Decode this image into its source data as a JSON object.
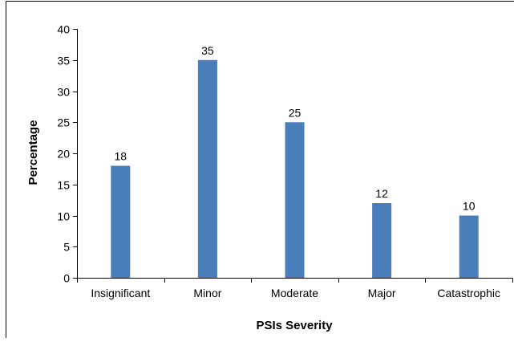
{
  "chart_data": {
    "type": "bar",
    "categories": [
      "Insignificant",
      "Minor",
      "Moderate",
      "Major",
      "Catastrophic"
    ],
    "values": [
      18,
      35,
      25,
      12,
      10
    ],
    "data_labels": [
      "18",
      "35",
      "25",
      "12",
      "10"
    ],
    "title": "",
    "xlabel": "PSIs Severity",
    "ylabel": "Percentage",
    "ylim": [
      0,
      40
    ],
    "yticks": [
      0,
      5,
      10,
      15,
      20,
      25,
      30,
      35,
      40
    ],
    "ytick_labels": [
      "0",
      "5",
      "10",
      "15",
      "20",
      "25",
      "30",
      "35",
      "40"
    ],
    "grid": false,
    "legend": "none",
    "bar_color": "#4a7ebb"
  }
}
